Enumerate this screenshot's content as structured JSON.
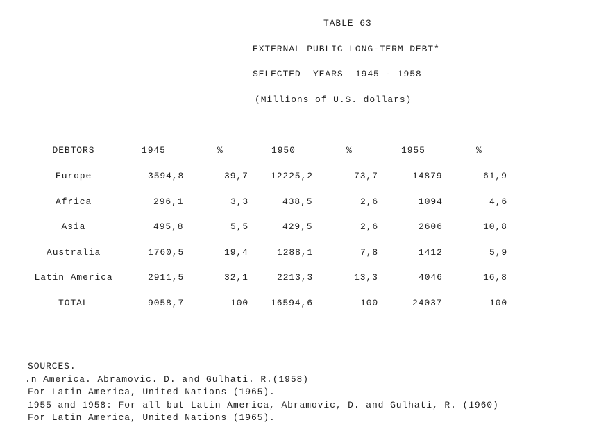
{
  "header": {
    "title": "TABLE 63",
    "subtitle": "EXTERNAL PUBLIC LONG-TERM DEBT*",
    "years": "SELECTED  YEARS  1945 - 1958",
    "units": "(Millions of U.S. dollars)"
  },
  "table": {
    "columns": [
      "DEBTORS",
      "1945",
      "%",
      "1950",
      "%",
      "1955",
      "%"
    ],
    "rows": [
      [
        "Europe",
        "3594,8",
        "39,7",
        "12225,2",
        "73,7",
        "14879",
        "61,9"
      ],
      [
        "Africa",
        "296,1",
        "3,3",
        "438,5",
        "2,6",
        "1094",
        "4,6"
      ],
      [
        "Asia",
        "495,8",
        "5,5",
        "429,5",
        "2,6",
        "2606",
        "10,8"
      ],
      [
        "Australia",
        "1760,5",
        "19,4",
        "1288,1",
        "7,8",
        "1412",
        "5,9"
      ],
      [
        "Latin America",
        "2911,5",
        "32,1",
        "2213,3",
        "13,3",
        "4046",
        "16,8"
      ],
      [
        "TOTAL",
        "9058,7",
        "100",
        "16594,6",
        "100",
        "24037",
        "100"
      ]
    ]
  },
  "sources": {
    "heading": "SOURCES.",
    "lines": [
      ".n America. Abramovic. D. and Gulhati. R.(1958)",
      "For Latin America, United Nations (1965).",
      "1955 and 1958: For all but Latin America, Abramovic, D. and Gulhati, R. (1960)",
      "For Latin America, United Nations (1965)."
    ]
  }
}
